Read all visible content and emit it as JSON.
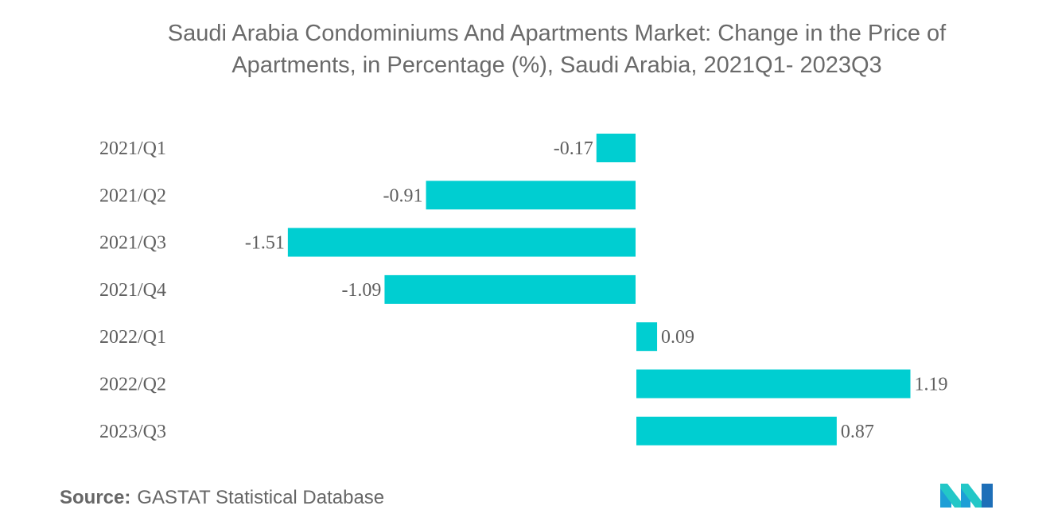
{
  "title_line1": "Saudi Arabia Condominiums And Apartments Market: Change in the Price of",
  "title_line2": "Apartments, in Percentage (%), Saudi Arabia, 2021Q1- 2023Q3",
  "source_label": "Source:",
  "source_text": "GASTAT Statistical Database",
  "colors": {
    "bar": "#00CED1",
    "text": "#5f5f5f",
    "title": "#6a6a6a"
  },
  "logo_icon": "mordor-intelligence-logo-icon",
  "chart_data": {
    "type": "bar",
    "orientation": "horizontal",
    "title": "Saudi Arabia Condominiums And Apartments Market: Change in the Price of Apartments, in Percentage (%), Saudi Arabia, 2021Q1- 2023Q3",
    "categories": [
      "2021/Q1",
      "2021/Q2",
      "2021/Q3",
      "2021/Q4",
      "2022/Q1",
      "2022/Q2",
      "2023/Q3"
    ],
    "values": [
      -0.17,
      -0.91,
      -1.51,
      -1.09,
      0.09,
      1.19,
      0.87
    ],
    "data_labels": [
      "-0.17",
      "-0.91",
      "-1.51",
      "-1.09",
      "0.09",
      "1.19",
      "0.87"
    ],
    "xlabel": "",
    "ylabel": "",
    "xlim": [
      -1.51,
      1.19
    ],
    "grid": false,
    "legend": "none"
  }
}
